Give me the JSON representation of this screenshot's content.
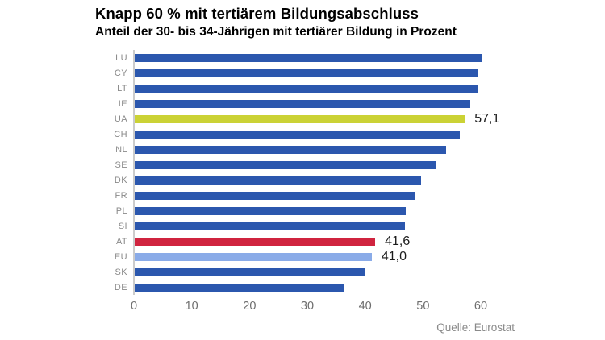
{
  "title": "Knapp 60 % mit tertiärem Bildungsabschluss",
  "subtitle": "Anteil der 30- bis 34-Jährigen mit tertiärer Bildung in Prozent",
  "source": "Quelle: Eurostat",
  "colors": {
    "bar_default": "#2b57ae",
    "bar_highlight_yellow": "#cbd235",
    "bar_highlight_red": "#d0243f",
    "bar_highlight_lightblue": "#8aabe8",
    "axis_line": "#cccccc",
    "country_label": "#8a8a8a",
    "tick_label": "#6e6e6e",
    "value_label": "#1b1b1b"
  },
  "chart_data": {
    "type": "bar",
    "orientation": "horizontal",
    "title": "Knapp 60 % mit tertiärem Bildungsabschluss",
    "subtitle": "Anteil der 30- bis 34-Jährigen mit tertiärer Bildung in Prozent",
    "xlabel": "",
    "ylabel": "",
    "xlim": [
      0,
      60
    ],
    "ticks": [
      0,
      10,
      20,
      30,
      40,
      50,
      60
    ],
    "grid": false,
    "legend": false,
    "value_unit": "Prozent",
    "rows": [
      {
        "code": "LU",
        "value": 60.0,
        "highlight": "default"
      },
      {
        "code": "CY",
        "value": 59.5,
        "highlight": "default"
      },
      {
        "code": "LT",
        "value": 59.3,
        "highlight": "default"
      },
      {
        "code": "IE",
        "value": 58.0,
        "highlight": "default"
      },
      {
        "code": "UA",
        "value": 57.1,
        "highlight": "yellow",
        "value_label": "57,1"
      },
      {
        "code": "CH",
        "value": 56.2,
        "highlight": "default"
      },
      {
        "code": "NL",
        "value": 53.9,
        "highlight": "default"
      },
      {
        "code": "SE",
        "value": 52.0,
        "highlight": "default"
      },
      {
        "code": "DK",
        "value": 49.6,
        "highlight": "default"
      },
      {
        "code": "FR",
        "value": 48.6,
        "highlight": "default"
      },
      {
        "code": "PL",
        "value": 46.9,
        "highlight": "default"
      },
      {
        "code": "SI",
        "value": 46.7,
        "highlight": "default"
      },
      {
        "code": "AT",
        "value": 41.6,
        "highlight": "red",
        "value_label": "41,6"
      },
      {
        "code": "EU",
        "value": 41.0,
        "highlight": "lightblue",
        "value_label": "41,0"
      },
      {
        "code": "SK",
        "value": 39.7,
        "highlight": "default"
      },
      {
        "code": "DE",
        "value": 36.2,
        "highlight": "default"
      }
    ]
  }
}
